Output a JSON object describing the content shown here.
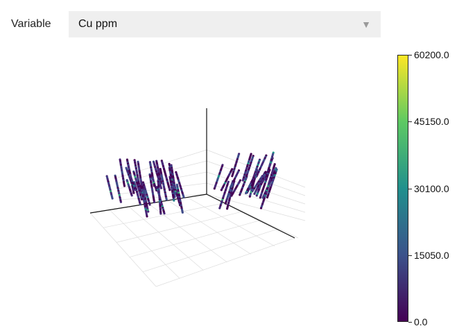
{
  "controls": {
    "variable_label": "Variable",
    "selected_variable": "Cu ppm",
    "dropdown_icon": "triangle-down-icon"
  },
  "colorbar": {
    "colormap": "viridis",
    "colors": [
      "#440154",
      "#3b528b",
      "#21908d",
      "#5dc963",
      "#fde725"
    ],
    "min": 0.0,
    "max": 60200.0,
    "ticks": [
      "60200.0",
      "45150.0",
      "30100.0",
      "15050.0",
      "0.0"
    ]
  },
  "chart_data": {
    "type": "scatter",
    "mode": "3d",
    "variable": "Cu ppm",
    "grid": true,
    "colorscale": "viridis",
    "cmin": 0.0,
    "cmax": 60200.0
  }
}
